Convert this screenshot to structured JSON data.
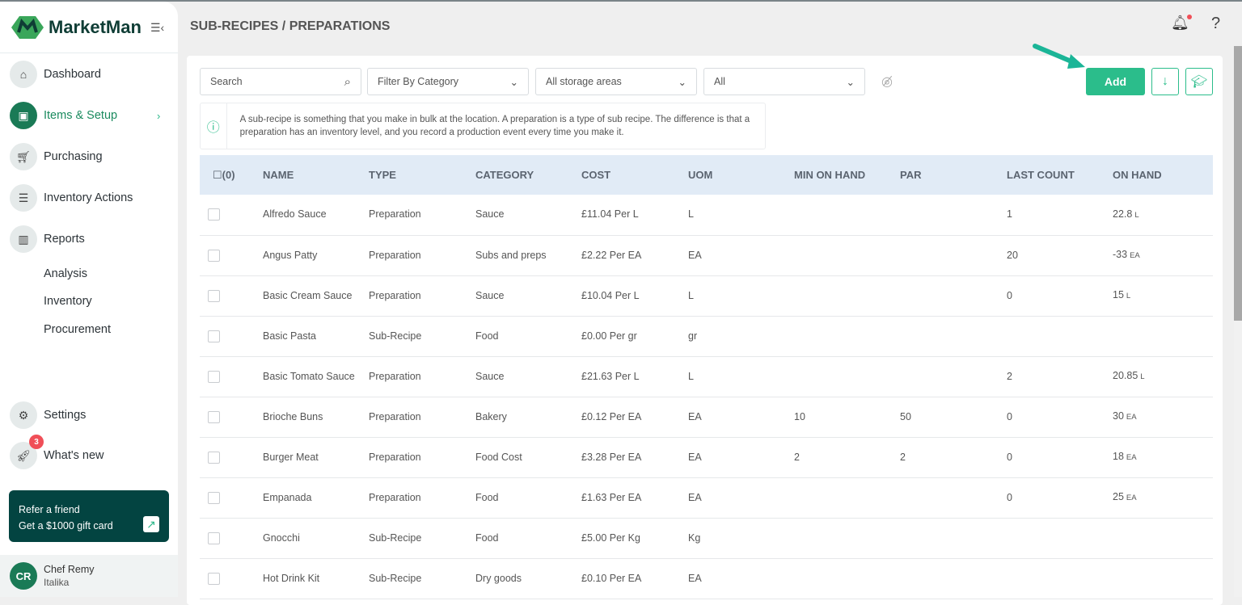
{
  "brand": {
    "name": "MarketMan",
    "accent": "#2bbd8b",
    "dark": "#034441"
  },
  "sidebar": {
    "items": [
      {
        "label": "Dashboard",
        "icon": "home-icon"
      },
      {
        "label": "Items & Setup",
        "icon": "box-icon",
        "active": true
      },
      {
        "label": "Purchasing",
        "icon": "cart-icon"
      },
      {
        "label": "Inventory Actions",
        "icon": "clipboard-icon"
      },
      {
        "label": "Reports",
        "icon": "chart-icon"
      }
    ],
    "report_sub": [
      "Analysis",
      "Inventory",
      "Procurement"
    ],
    "settings": "Settings",
    "whats_new": "What's new",
    "whats_new_badge": "3",
    "refer": {
      "line1": "Refer a friend",
      "line2": "Get a $1000 gift card"
    },
    "user": {
      "initials": "CR",
      "name": "Chef Remy",
      "location": "Italika"
    }
  },
  "header": {
    "title": "SUB-RECIPES / PREPARATIONS"
  },
  "toolbar": {
    "search_placeholder": "Search",
    "category": "Filter By Category",
    "storage": "All storage areas",
    "type": "All",
    "add": "Add"
  },
  "info": "A sub-recipe is something that you make in bulk at the location. A preparation is a type of sub recipe. The difference is that a preparation has an inventory level, and you record a production event every time you make it.",
  "table": {
    "select_count": "(0)",
    "columns": [
      "NAME",
      "TYPE",
      "CATEGORY",
      "COST",
      "UOM",
      "MIN ON HAND",
      "PAR",
      "LAST COUNT",
      "ON HAND"
    ],
    "rows": [
      [
        "Alfredo Sauce",
        "Preparation",
        "Sauce",
        "£11.04 Per L",
        "L",
        "",
        "",
        "1",
        "22.8",
        "L"
      ],
      [
        "Angus Patty",
        "Preparation",
        "Subs and preps",
        "£2.22 Per EA",
        "EA",
        "",
        "",
        "20",
        "-33",
        "EA"
      ],
      [
        "Basic Cream Sauce",
        "Preparation",
        "Sauce",
        "£10.04 Per L",
        "L",
        "",
        "",
        "0",
        "15",
        "L"
      ],
      [
        "Basic Pasta",
        "Sub-Recipe",
        "Food",
        "£0.00 Per gr",
        "gr",
        "",
        "",
        "",
        "",
        ""
      ],
      [
        "Basic Tomato Sauce",
        "Preparation",
        "Sauce",
        "£21.63 Per L",
        "L",
        "",
        "",
        "2",
        "20.85",
        "L"
      ],
      [
        "Brioche Buns",
        "Preparation",
        "Bakery",
        "£0.12 Per EA",
        "EA",
        "10",
        "50",
        "0",
        "30",
        "EA"
      ],
      [
        "Burger Meat",
        "Preparation",
        "Food Cost",
        "£3.28 Per EA",
        "EA",
        "2",
        "2",
        "0",
        "18",
        "EA"
      ],
      [
        "Empanada",
        "Preparation",
        "Food",
        "£1.63 Per EA",
        "EA",
        "",
        "",
        "0",
        "25",
        "EA"
      ],
      [
        "Gnocchi",
        "Sub-Recipe",
        "Food",
        "£5.00 Per Kg",
        "Kg",
        "",
        "",
        "",
        "",
        ""
      ],
      [
        "Hot Drink Kit",
        "Sub-Recipe",
        "Dry goods",
        "£0.10 Per EA",
        "EA",
        "",
        "",
        "",
        "",
        ""
      ]
    ]
  }
}
